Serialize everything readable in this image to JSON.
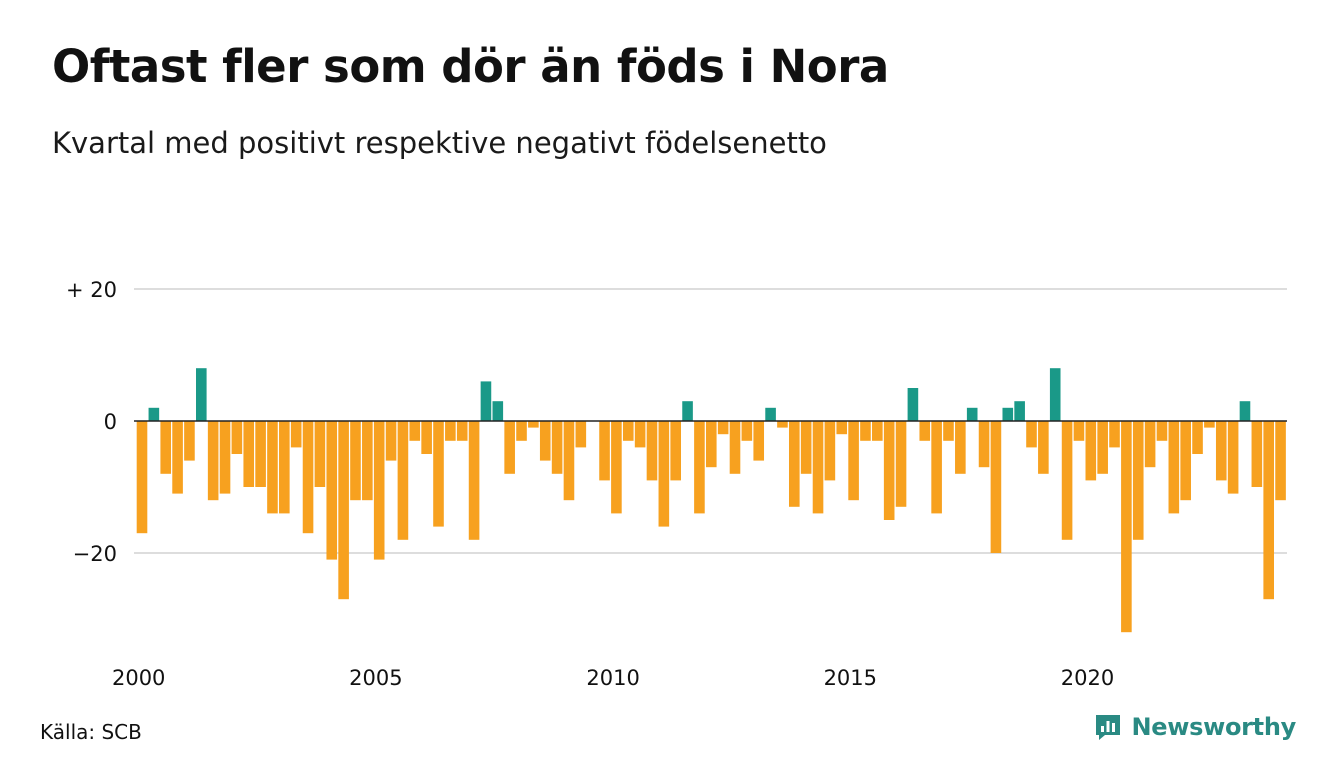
{
  "header": {
    "title": "Oftast fler som dör än föds i Nora",
    "subtitle": "Kvartal med positivt respektive negativt födelsenetto"
  },
  "footer": {
    "source": "Källa: SCB",
    "brand": "Newsworthy",
    "brand_icon": "newsworthy-logo-icon"
  },
  "colors": {
    "positive": "#1a9988",
    "negative": "#f7a11f",
    "grid": "#dddddd",
    "zero_line": "#222222",
    "brand": "#2a8a83"
  },
  "chart_data": {
    "type": "bar",
    "title": "Oftast fler som dör än föds i Nora",
    "subtitle": "Kvartal med positivt respektive negativt födelsenetto",
    "x_start": "2000 Q1",
    "x_tick_labels": [
      "2000",
      "2005",
      "2010",
      "2015",
      "2020"
    ],
    "y_ticks": [
      20,
      0,
      -20
    ],
    "y_tick_labels": [
      "+ 20",
      "0",
      "−20"
    ],
    "ylim": [
      -33,
      20
    ],
    "grid": true,
    "series": [
      {
        "values": [
          -17,
          2,
          -8,
          -11,
          -6,
          8,
          -12,
          -11,
          -5,
          -10,
          -10,
          -14,
          -14,
          -4,
          -17,
          -10,
          -21,
          -27,
          -12,
          -12,
          -21,
          -6,
          -18,
          -3,
          -5,
          -16,
          -3,
          -3,
          -18,
          6,
          3,
          -8,
          -3,
          -1,
          -6,
          -8,
          -12,
          -4,
          0,
          -9,
          -14,
          -3,
          -4,
          -9,
          -16,
          -9,
          3,
          -14,
          -7,
          -2,
          -8,
          -3,
          -6,
          2,
          -1,
          -13,
          -8,
          -14,
          -9,
          -2,
          -12,
          -3,
          -3,
          -15,
          -13,
          5,
          -3,
          -14,
          -3,
          -8,
          2,
          -7,
          -20,
          2,
          3,
          -4,
          -8,
          8,
          -18,
          -3,
          -9,
          -8,
          -4,
          -32,
          -18,
          -7,
          -3,
          -14,
          -12,
          -5,
          -1,
          -9,
          -11,
          3,
          -10,
          -27,
          -12
        ]
      }
    ]
  }
}
